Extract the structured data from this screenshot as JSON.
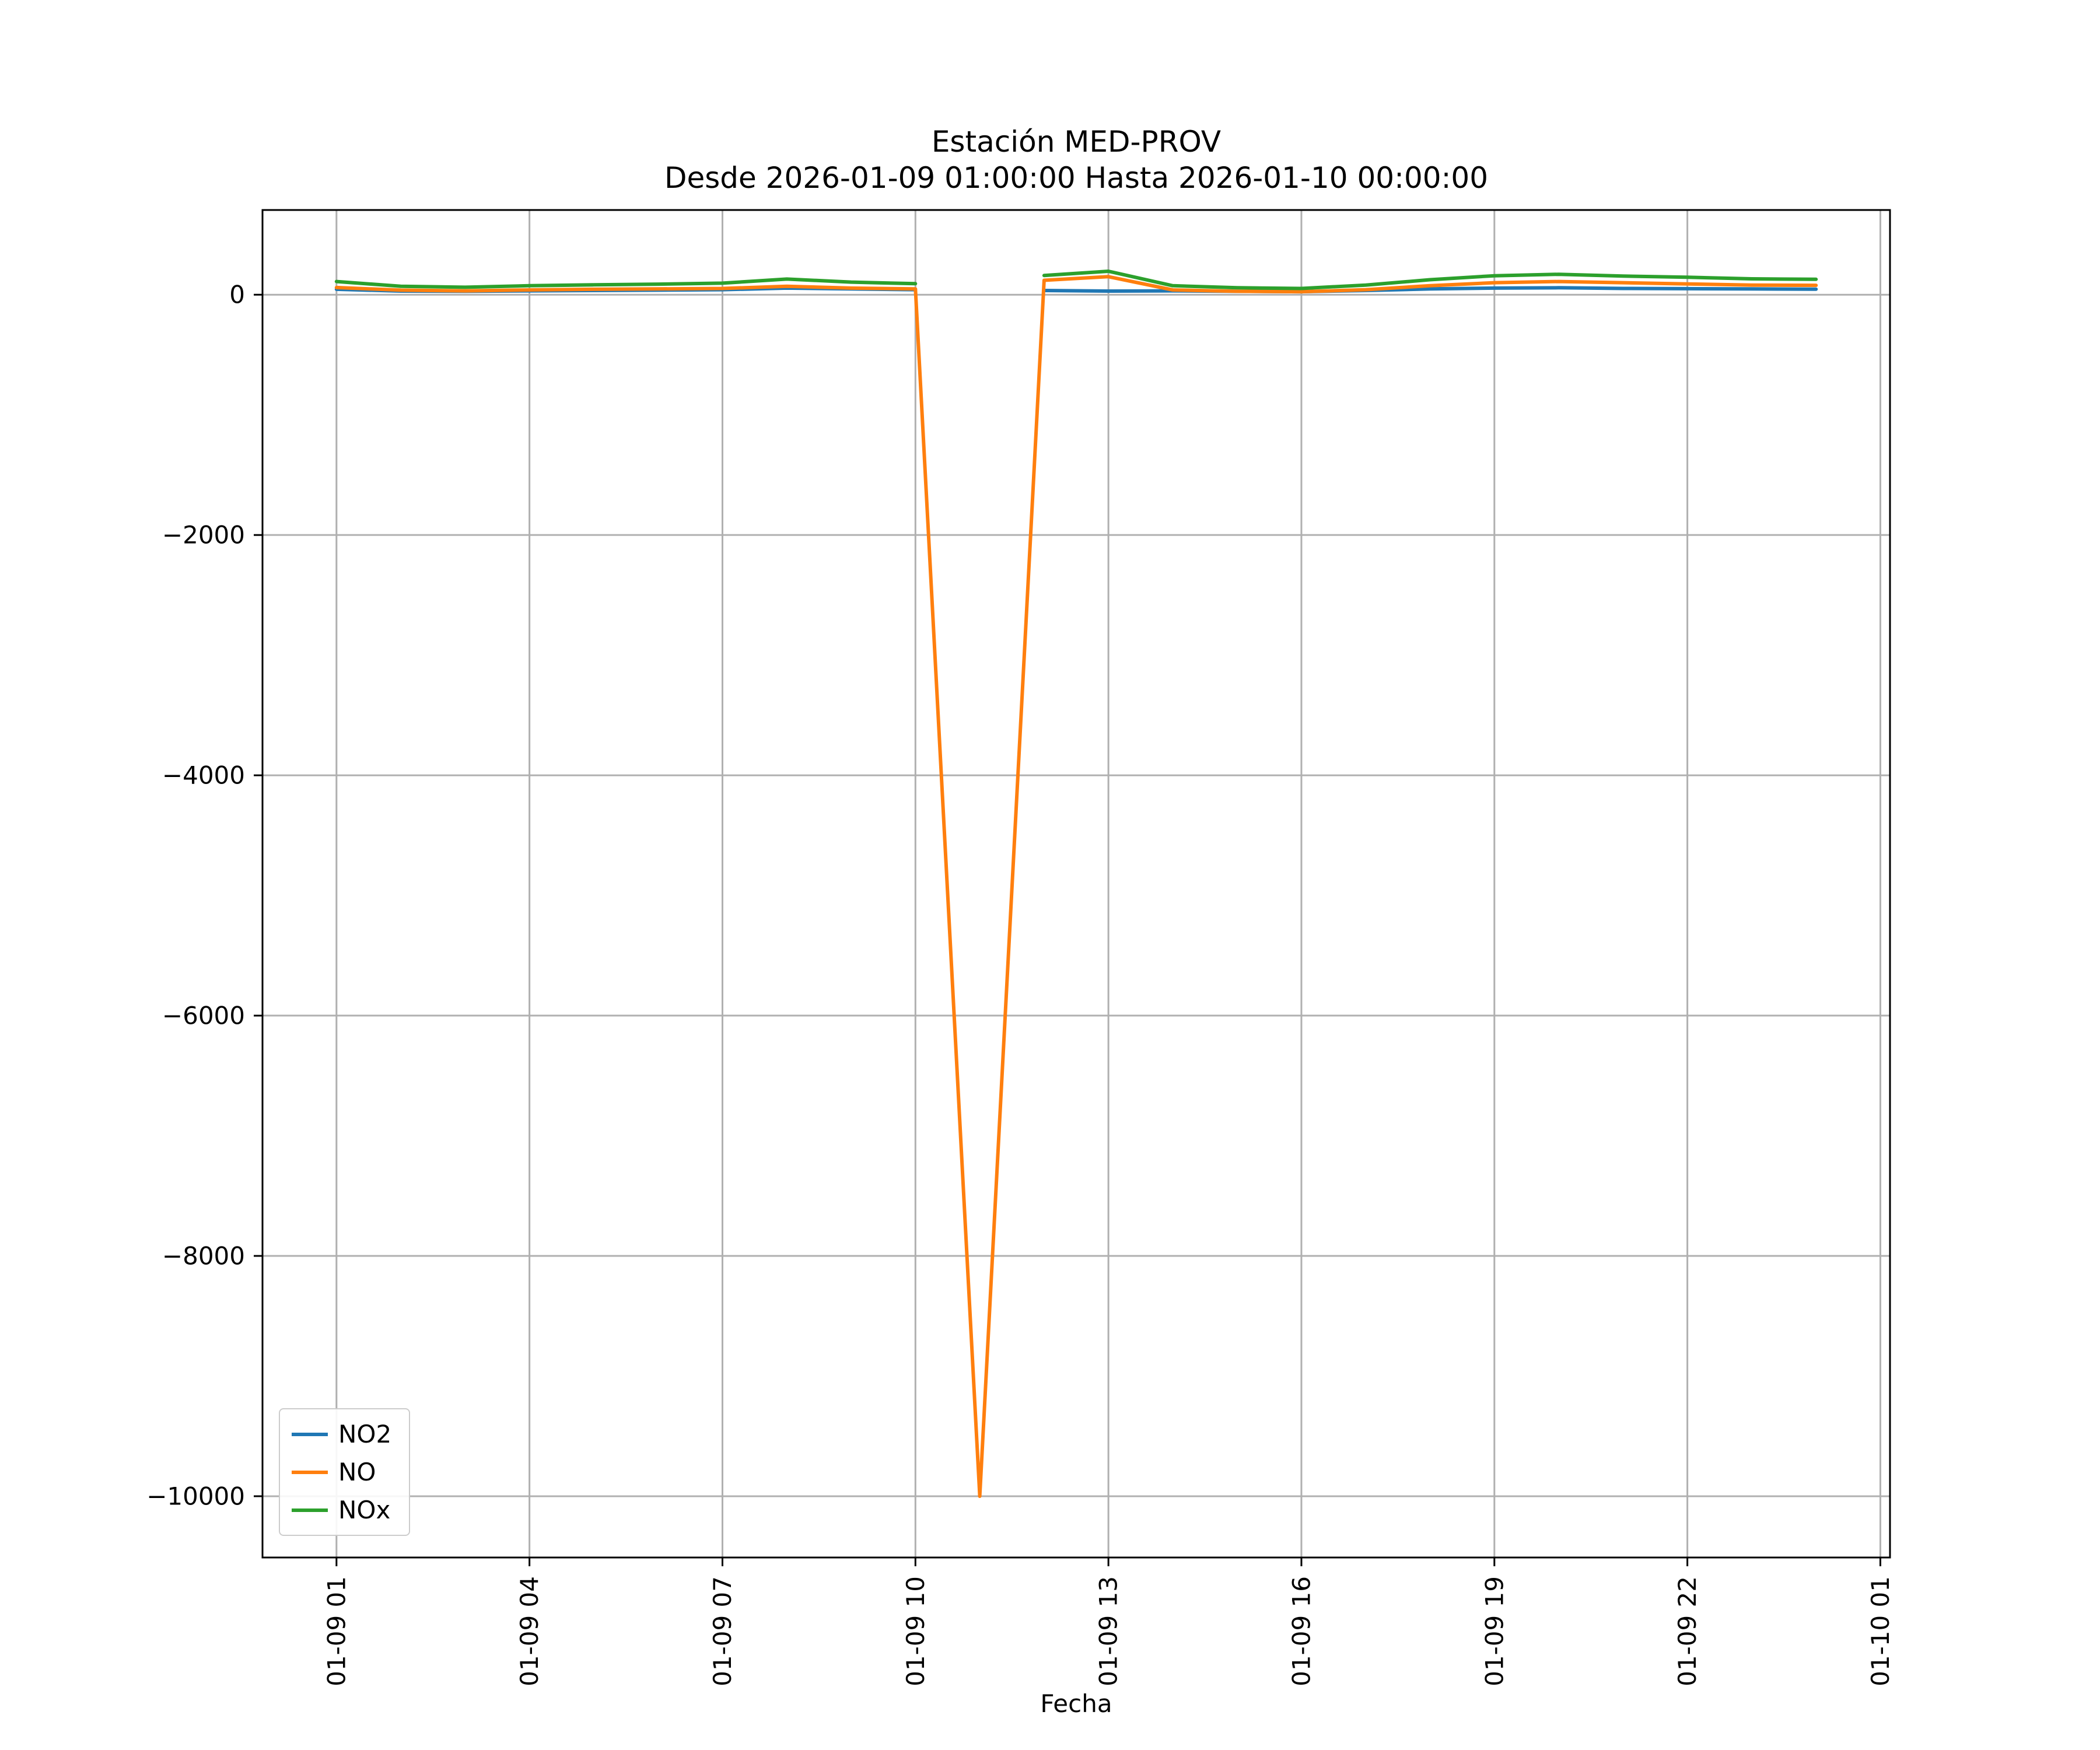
{
  "figure": {
    "background": "#ffffff"
  },
  "chart_data": {
    "type": "line",
    "title": "Estación MED-PROV",
    "subtitle": "Desde 2026-01-09 01:00:00 Hasta 2026-01-10 00:00:00",
    "xlabel": "Fecha",
    "ylabel": "",
    "grid": true,
    "grid_color": "#b0b0b0",
    "legend_position": "lower left",
    "xlim": [
      -0.15,
      25.15
    ],
    "ylim": [
      -10510,
      705
    ],
    "x_hours": [
      1,
      2,
      3,
      4,
      5,
      6,
      7,
      8,
      9,
      10,
      11,
      12,
      13,
      14,
      15,
      16,
      17,
      18,
      19,
      20,
      21,
      22,
      23,
      24
    ],
    "xticks": {
      "values": [
        1,
        4,
        7,
        10,
        13,
        16,
        19,
        22,
        25
      ],
      "labels": [
        "01-09 01",
        "01-09 04",
        "01-09 07",
        "01-09 10",
        "01-09 13",
        "01-09 16",
        "01-09 19",
        "01-09 22",
        "01-10 01"
      ]
    },
    "yticks": {
      "values": [
        0,
        -2000,
        -4000,
        -6000,
        -8000,
        -10000
      ],
      "labels": [
        "0",
        "−2000",
        "−4000",
        "−6000",
        "−8000",
        "−10000"
      ]
    },
    "series": [
      {
        "name": "NO2",
        "color": "#1f77b4",
        "values": [
          45,
          30,
          28,
          32,
          35,
          38,
          42,
          55,
          48,
          42,
          null,
          35,
          30,
          32,
          28,
          25,
          35,
          48,
          55,
          58,
          52,
          50,
          48,
          46
        ]
      },
      {
        "name": "NO",
        "color": "#ff7f0e",
        "values": [
          60,
          38,
          32,
          40,
          45,
          48,
          52,
          70,
          55,
          48,
          -10000,
          120,
          150,
          40,
          28,
          25,
          42,
          75,
          100,
          110,
          100,
          90,
          80,
          78
        ]
      },
      {
        "name": "NOx",
        "color": "#2ca02c",
        "values": [
          110,
          70,
          62,
          75,
          82,
          88,
          96,
          130,
          105,
          92,
          null,
          160,
          195,
          75,
          58,
          52,
          80,
          125,
          158,
          170,
          155,
          145,
          132,
          128
        ]
      }
    ]
  }
}
